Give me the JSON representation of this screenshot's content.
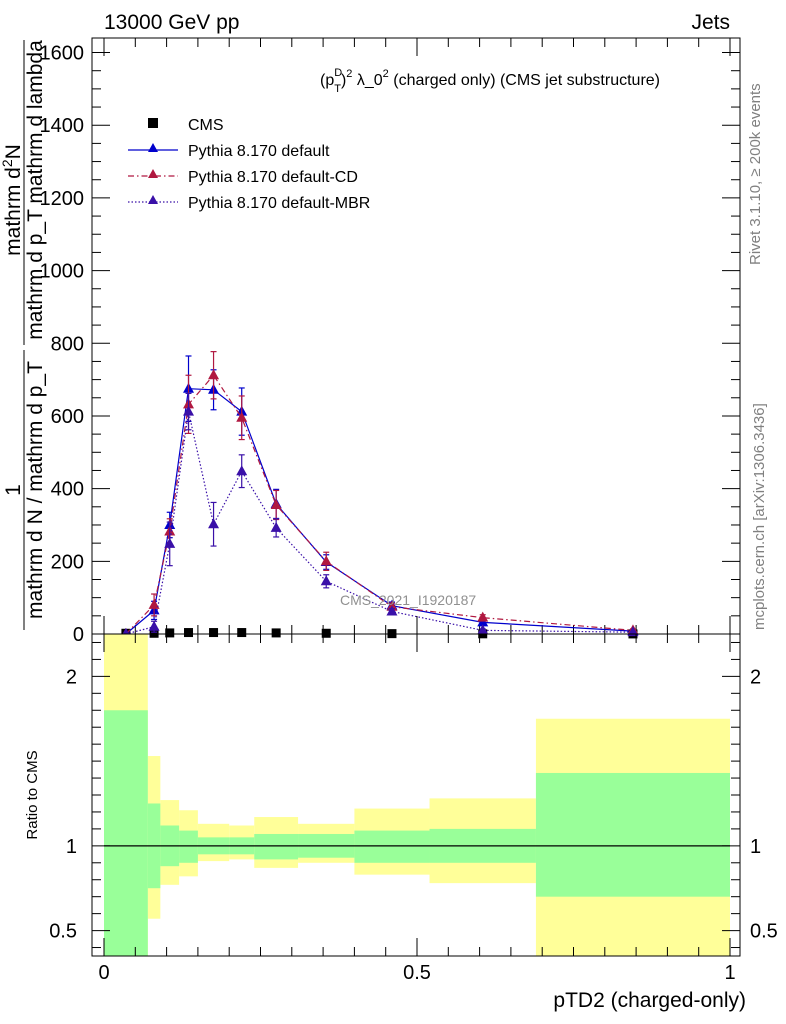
{
  "header": {
    "energy_label": "13000 GeV pp",
    "category_label": "Jets"
  },
  "side_labels": {
    "rivet": "Rivet 3.1.10, ≥ 200k events",
    "mcplots": "mcplots.cern.ch [arXiv:1306.3436]"
  },
  "chart_data": [
    {
      "type": "line",
      "title": "(p_T^D)^2 λ_0^2 (charged only) (CMS jet substructure)",
      "title_parts": {
        "p": "(p",
        "sup_d": "D",
        "sub_t": "T",
        "close": ")",
        "sup_2": "2",
        "rest": " λ_0",
        "sup_2b": "2",
        "tail": " (charged only) (CMS jet substructure)"
      },
      "ylabel_numerator": "mathrm d²N",
      "ylabel_numerator_text": "mathrm d",
      "ylabel_numerator_sup": "2",
      "ylabel_numerator_tail": "N",
      "ylabel_denominator": "mathrm d p_T mathrm d lambda",
      "ylabel_prefix": "1",
      "ylabel_prefix_denominator": "mathrm d N / mathrm d p_T",
      "watermark": "CMS_2021_I1920187",
      "xlim": [
        0,
        1
      ],
      "ylim": [
        0,
        1640
      ],
      "y_ticks": [
        0,
        200,
        400,
        600,
        800,
        1000,
        1200,
        1400,
        1600
      ],
      "y_tick_labels": [
        "0",
        "200",
        "400",
        "600",
        "800",
        "1000",
        "1200",
        "1400",
        "1600"
      ],
      "legend": {
        "position": "top-left",
        "entries": [
          "CMS",
          "Pythia 8.170 default",
          "Pythia 8.170 default-CD",
          "Pythia 8.170 default-MBR"
        ]
      },
      "bin_edges": [
        0,
        0.07,
        0.09,
        0.12,
        0.15,
        0.2,
        0.24,
        0.31,
        0.4,
        0.52,
        0.69,
        1.0
      ],
      "x": [
        0.035,
        0.08,
        0.105,
        0.135,
        0.175,
        0.22,
        0.275,
        0.355,
        0.46,
        0.605,
        0.845
      ],
      "series": [
        {
          "name": "CMS",
          "color": "#000000",
          "marker": "square",
          "values": [
            2,
            2,
            3,
            4,
            4,
            4,
            3,
            2,
            1,
            0.5,
            0.2
          ]
        },
        {
          "name": "Pythia 8.170 default",
          "color": "#0000cc",
          "marker": "triangle",
          "dash": "solid",
          "values": [
            0,
            65,
            300,
            675,
            672,
            612,
            358,
            198,
            78,
            32,
            8
          ],
          "errors": [
            0,
            25,
            35,
            90,
            55,
            65,
            40,
            20,
            10,
            6,
            4
          ]
        },
        {
          "name": "Pythia 8.170 default-CD",
          "color": "#b01840",
          "marker": "triangle",
          "dash": "6,3,1.5,3",
          "values": [
            0,
            80,
            282,
            632,
            712,
            595,
            355,
            200,
            75,
            45,
            10
          ],
          "errors": [
            0,
            30,
            35,
            80,
            65,
            60,
            40,
            25,
            10,
            8,
            4
          ]
        },
        {
          "name": "Pythia 8.170 default-MBR",
          "color": "#3a10a8",
          "marker": "triangle",
          "dash": "1.5,2",
          "values": [
            0,
            20,
            248,
            612,
            302,
            448,
            292,
            145,
            62,
            10,
            5
          ],
          "errors": [
            0,
            15,
            60,
            50,
            60,
            45,
            25,
            18,
            8,
            4,
            2
          ]
        }
      ]
    },
    {
      "type": "area",
      "ylabel": "Ratio to CMS",
      "xlabel": "pTD2 (charged-only)",
      "xlim": [
        0,
        1
      ],
      "ylim": [
        0.35,
        2.25
      ],
      "x_ticks": [
        0,
        0.5,
        1
      ],
      "x_tick_labels": [
        "0",
        "0.5",
        "1"
      ],
      "y_ticks": [
        0.5,
        1,
        2
      ],
      "y_tick_labels": [
        "0.5",
        "1",
        "2"
      ],
      "bin_edges": [
        0,
        0.07,
        0.09,
        0.12,
        0.15,
        0.2,
        0.24,
        0.31,
        0.4,
        0.52,
        0.69,
        1.0
      ],
      "inner_band": {
        "name": "stat",
        "color": "#99ff99",
        "upper": [
          1.8,
          1.25,
          1.12,
          1.09,
          1.05,
          1.05,
          1.07,
          1.07,
          1.09,
          1.1,
          1.43
        ],
        "lower": [
          0.2,
          0.75,
          0.88,
          0.9,
          0.95,
          0.95,
          0.92,
          0.93,
          0.9,
          0.9,
          0.7
        ]
      },
      "outer_band": {
        "name": "total",
        "color": "#ffff99",
        "upper": [
          2.3,
          1.53,
          1.27,
          1.21,
          1.13,
          1.12,
          1.17,
          1.13,
          1.22,
          1.28,
          1.75
        ],
        "lower": [
          0.2,
          0.57,
          0.77,
          0.82,
          0.91,
          0.92,
          0.87,
          0.9,
          0.83,
          0.78,
          0.35
        ]
      },
      "reference_line": 1
    }
  ]
}
